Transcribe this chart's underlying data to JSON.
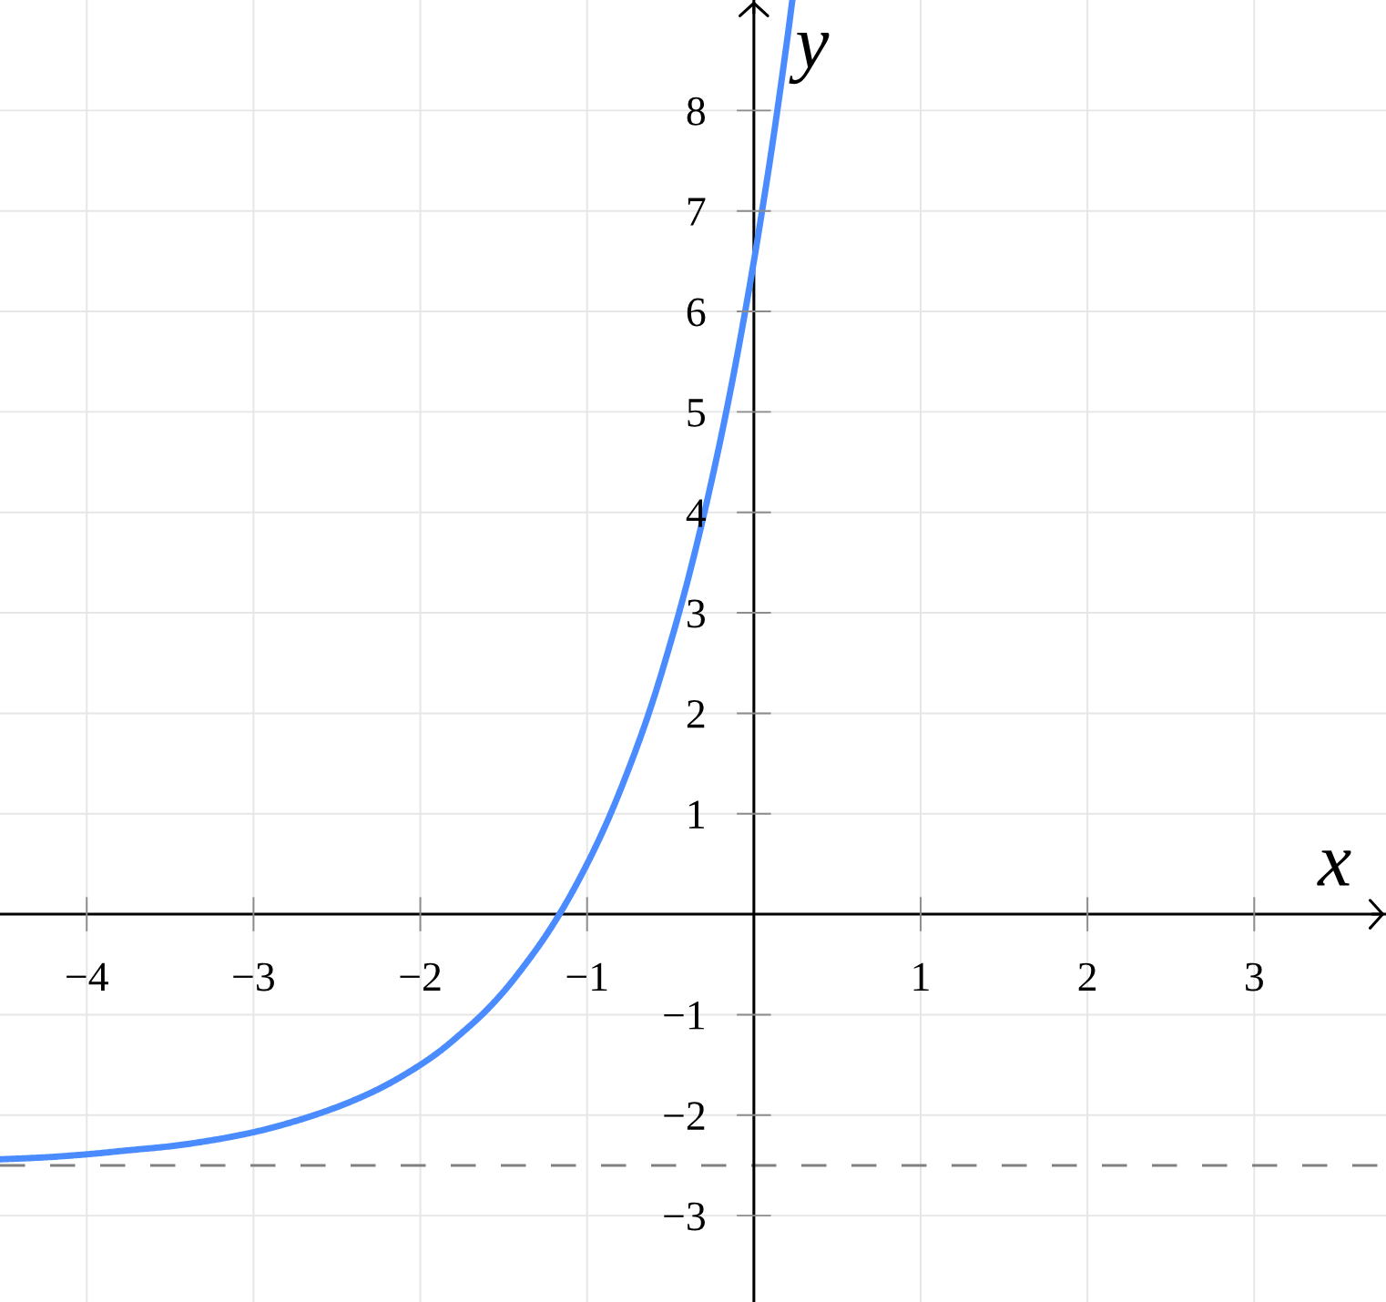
{
  "chart_data": {
    "type": "line",
    "xlabel": "x",
    "ylabel": "y",
    "x": [
      -4.52,
      -4.25,
      -4.0,
      -3.75,
      -3.5,
      -3.25,
      -3.0,
      -2.75,
      -2.5,
      -2.25,
      -2.0,
      -1.88,
      -1.75,
      -1.63,
      -1.5,
      -1.38,
      -1.25,
      -1.13,
      -1.0,
      -0.88,
      -0.75,
      -0.63,
      -0.5,
      -0.38,
      -0.25,
      -0.13,
      0.0,
      0.05,
      0.1,
      0.15,
      0.2,
      0.23
    ],
    "values": [
      -2.44,
      -2.42,
      -2.39,
      -2.35,
      -2.31,
      -2.25,
      -2.17,
      -2.06,
      -1.92,
      -1.74,
      -1.5,
      -1.36,
      -1.18,
      -1.0,
      -0.77,
      -0.52,
      -0.22,
      0.1,
      0.5,
      0.92,
      1.45,
      2.0,
      2.7,
      3.43,
      4.34,
      5.3,
      6.5,
      7.01,
      7.54,
      8.11,
      8.71,
      9.09
    ],
    "color": "#4a8cff",
    "marker": "none",
    "line_style": "solid",
    "xlim": [
      -4.52,
      3.79
    ],
    "ylim": [
      -3.86,
      9.1
    ],
    "xticks": [
      {
        "value": -4,
        "label": "−4"
      },
      {
        "value": -3,
        "label": "−3"
      },
      {
        "value": -2,
        "label": "−2"
      },
      {
        "value": -1,
        "label": "−1"
      },
      1,
      2,
      3
    ],
    "yticks": [
      {
        "value": -3,
        "label": "−3"
      },
      {
        "value": -2,
        "label": "−2"
      },
      {
        "value": -1,
        "label": "−1"
      },
      1,
      2,
      3,
      4,
      5,
      6,
      7,
      8
    ],
    "grid": true,
    "ref_lines": [
      {
        "axis": "y",
        "value": -2.5,
        "color": "#808080",
        "line_style": "dashed"
      }
    ]
  }
}
